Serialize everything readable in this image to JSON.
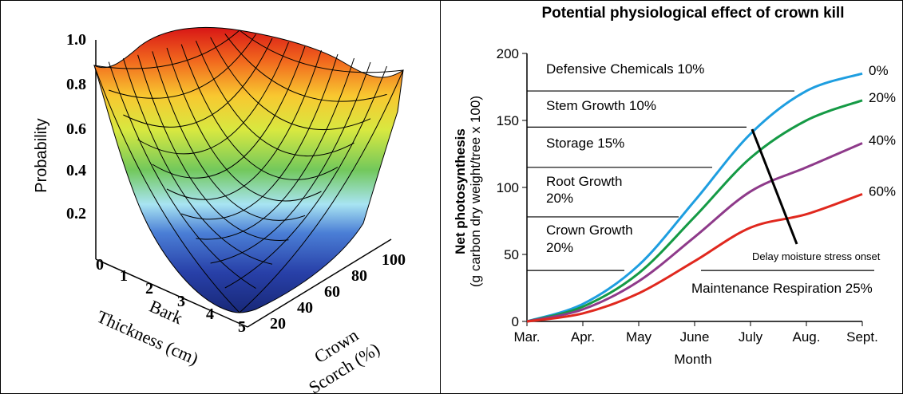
{
  "chart_data": [
    {
      "type": "surface",
      "zlabel": "Probability",
      "xlabel_line1": "Bark",
      "xlabel_line2": "Thickness (cm)",
      "ylabel_line1": "Crown",
      "ylabel_line2": "Scorch (%)",
      "z_ticks": [
        "0.2",
        "0.4",
        "0.6",
        "0.8",
        "1.0"
      ],
      "x_ticks": [
        "0",
        "1",
        "2",
        "3",
        "4",
        "5"
      ],
      "y_ticks": [
        "20",
        "40",
        "60",
        "80",
        "100"
      ],
      "zlim": [
        0,
        1
      ],
      "xlim": [
        0,
        5
      ],
      "ylim": [
        0,
        100
      ],
      "colorscale": [
        "#1a2a8a",
        "#3a6cd0",
        "#a8e0f0",
        "#7ed860",
        "#f0e040",
        "#f07020",
        "#d01010"
      ],
      "surface_samples": [
        {
          "bark": 0,
          "scorch": 0,
          "p": 0.88
        },
        {
          "bark": 0,
          "scorch": 100,
          "p": 0.88
        },
        {
          "bark": 5,
          "scorch": 0,
          "p": 0.0
        },
        {
          "bark": 5,
          "scorch": 100,
          "p": 0.88
        },
        {
          "bark": 2.5,
          "scorch": 50,
          "p": 0.05
        }
      ]
    },
    {
      "type": "line",
      "title": "Potential physiological effect of crown kill",
      "xlabel": "Month",
      "ylabel_line1": "Net photosynthesis",
      "ylabel_line2": "(g carbon dry weight/tree x 100)",
      "categories": [
        "Mar.",
        "Apr.",
        "May",
        "June",
        "July",
        "Aug.",
        "Sept."
      ],
      "y_ticks": [
        "0",
        "50",
        "100",
        "150",
        "200"
      ],
      "ylim": [
        0,
        200
      ],
      "series": [
        {
          "name": "0%",
          "color": "#1e9ee0",
          "values": [
            0,
            13,
            42,
            90,
            140,
            172,
            185
          ]
        },
        {
          "name": "20%",
          "color": "#159a45",
          "values": [
            0,
            11,
            36,
            78,
            122,
            150,
            165
          ]
        },
        {
          "name": "40%",
          "color": "#8e3a8a",
          "values": [
            0,
            9,
            30,
            63,
            97,
            115,
            133
          ]
        },
        {
          "name": "60%",
          "color": "#e0281e",
          "values": [
            0,
            6,
            21,
            45,
            70,
            80,
            95
          ]
        }
      ],
      "allocation_labels": [
        {
          "text": "Defensive Chemicals 10%",
          "line_y": 172
        },
        {
          "text": "Stem Growth 10%",
          "line_y": 145
        },
        {
          "text": "Storage 15%",
          "line_y": 115
        },
        {
          "text_line1": "Root Growth",
          "text_line2": "20%",
          "line_y": 78
        },
        {
          "text_line1": "Crown Growth",
          "text_line2": "20%",
          "line_y": 38
        }
      ],
      "maintenance_label": "Maintenance Respiration 25%",
      "maintenance_line_y": 38,
      "annotation": "Delay moisture stress onset"
    }
  ]
}
